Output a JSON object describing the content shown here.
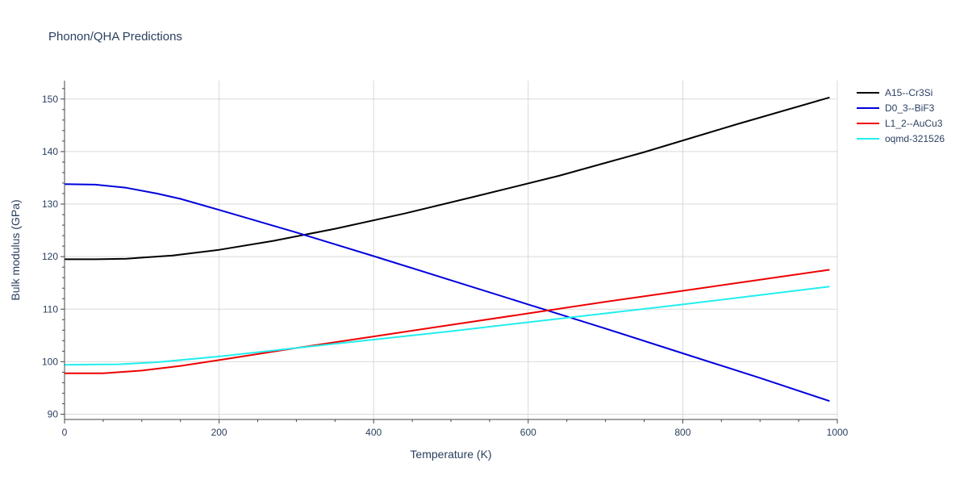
{
  "chart_data": {
    "type": "line",
    "title": "Phonon/QHA Predictions",
    "xlabel": "Temperature (K)",
    "ylabel": "Bulk modulus (GPa)",
    "xlim": [
      0,
      1000
    ],
    "ylim": [
      89,
      153.5
    ],
    "xticks": [
      0,
      200,
      400,
      600,
      800,
      1000
    ],
    "yticks": [
      90,
      100,
      110,
      120,
      130,
      140,
      150
    ],
    "grid": true,
    "legend": "top-right",
    "series": [
      {
        "name": "A15--Cr3Si",
        "color": "#000000",
        "x": [
          0,
          40,
          80,
          100,
          140,
          200,
          270,
          350,
          440,
          530,
          640,
          750,
          870,
          990
        ],
        "y": [
          119.5,
          119.5,
          119.6,
          119.8,
          120.2,
          121.3,
          123.0,
          125.3,
          128.2,
          131.4,
          135.4,
          139.9,
          145.2,
          150.3
        ]
      },
      {
        "name": "D0_3--BiF3",
        "color": "#0000dd",
        "x": [
          0,
          40,
          80,
          120,
          150,
          200,
          300,
          400,
          500,
          600,
          700,
          800,
          900,
          990
        ],
        "y": [
          133.8,
          133.7,
          133.1,
          132.0,
          131.0,
          128.9,
          124.6,
          120.1,
          115.5,
          110.9,
          106.3,
          101.6,
          96.9,
          92.5
        ]
      },
      {
        "name": "L1_2--AuCu3",
        "color": "#ee0000",
        "x": [
          0,
          50,
          100,
          150,
          200,
          300,
          400,
          500,
          600,
          700,
          800,
          900,
          990
        ],
        "y": [
          97.8,
          97.8,
          98.3,
          99.2,
          100.3,
          102.6,
          104.8,
          107.0,
          109.2,
          111.4,
          113.5,
          115.6,
          117.5
        ]
      },
      {
        "name": "oqmd-321526",
        "color": "#22eeee",
        "x": [
          0,
          70,
          120,
          200,
          300,
          400,
          500,
          600,
          700,
          800,
          900,
          990
        ],
        "y": [
          99.4,
          99.5,
          99.9,
          101.0,
          102.6,
          104.2,
          105.8,
          107.5,
          109.2,
          110.9,
          112.7,
          114.3
        ]
      }
    ]
  }
}
